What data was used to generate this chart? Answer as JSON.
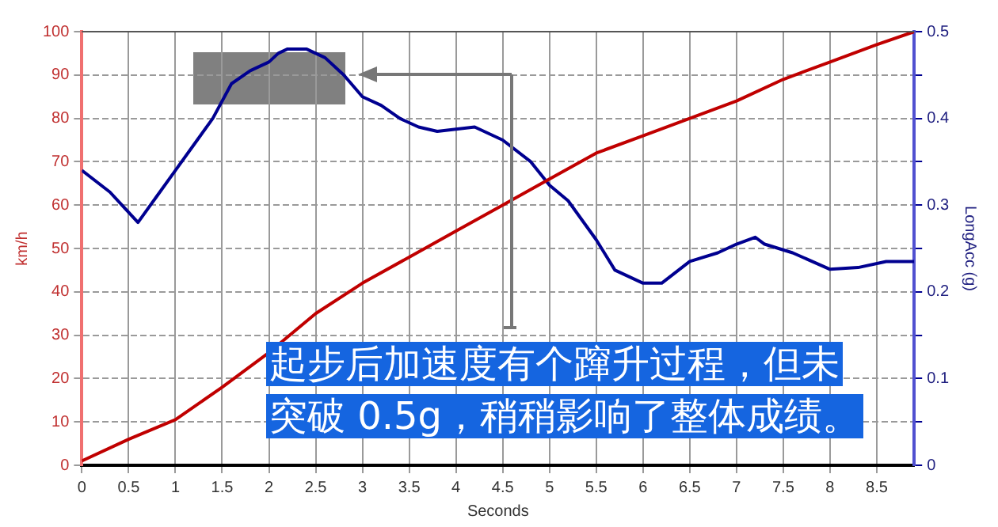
{
  "chart_data": {
    "type": "line",
    "xlabel": "Seconds",
    "ylabel": "km/h",
    "y2label": "LongAcc (g)",
    "xlim": [
      0,
      8.9
    ],
    "xticks": [
      0,
      0.5,
      1,
      1.5,
      2,
      2.5,
      3,
      3.5,
      4,
      4.5,
      5,
      5.5,
      6,
      6.5,
      7,
      7.5,
      8,
      8.5
    ],
    "ylim": [
      0,
      100
    ],
    "yticks": [
      0,
      10,
      20,
      30,
      40,
      50,
      60,
      70,
      80,
      90,
      100
    ],
    "y2lim": [
      0,
      0.5
    ],
    "y2ticks": [
      0,
      {
        "value": 0.05,
        "label": null
      },
      0.1,
      {
        "value": 0.15,
        "label": null
      },
      0.2,
      {
        "value": 0.25,
        "label": null
      },
      0.3,
      {
        "value": 0.35,
        "label": null
      },
      0.4,
      {
        "value": 0.45,
        "label": null
      },
      0.5
    ],
    "grid": true,
    "legend": false,
    "line_style": "solid",
    "marker": "none",
    "series": [
      {
        "color": "#c00000",
        "x": [
          0,
          0.5,
          1,
          1.5,
          2,
          2.5,
          3,
          3.5,
          4,
          4.5,
          5,
          5.5,
          6,
          6.5,
          7,
          7.5,
          8,
          8.5,
          8.9
        ],
        "values": [
          1,
          6,
          10.5,
          18,
          26,
          35,
          42,
          48,
          54,
          60,
          66,
          72,
          76,
          80,
          84,
          89,
          93,
          97,
          100
        ]
      },
      {
        "color": "#000090",
        "axis": "y2",
        "x": [
          0,
          0.3,
          0.6,
          0.8,
          1.0,
          1.2,
          1.4,
          1.6,
          1.8,
          2.0,
          2.1,
          2.2,
          2.4,
          2.6,
          2.8,
          3.0,
          3.2,
          3.4,
          3.6,
          3.8,
          4.2,
          4.5,
          4.8,
          5.0,
          5.2,
          5.5,
          5.7,
          6.0,
          6.2,
          6.5,
          6.8,
          7.0,
          7.2,
          7.3,
          7.6,
          8.0,
          8.3,
          8.6,
          8.9
        ],
        "values": [
          0.34,
          0.315,
          0.28,
          0.31,
          0.34,
          0.37,
          0.4,
          0.44,
          0.455,
          0.465,
          0.475,
          0.48,
          0.48,
          0.47,
          0.45,
          0.425,
          0.415,
          0.4,
          0.39,
          0.385,
          0.39,
          0.375,
          0.35,
          0.323,
          0.305,
          0.26,
          0.225,
          0.21,
          0.21,
          0.235,
          0.245,
          0.255,
          0.263,
          0.255,
          0.245,
          0.226,
          0.228,
          0.235,
          0.235
        ]
      }
    ],
    "annotations": [
      "起步后加速度有个蹿升过程，但未突破 0.5g，稍稍影响了整体成绩。"
    ]
  }
}
